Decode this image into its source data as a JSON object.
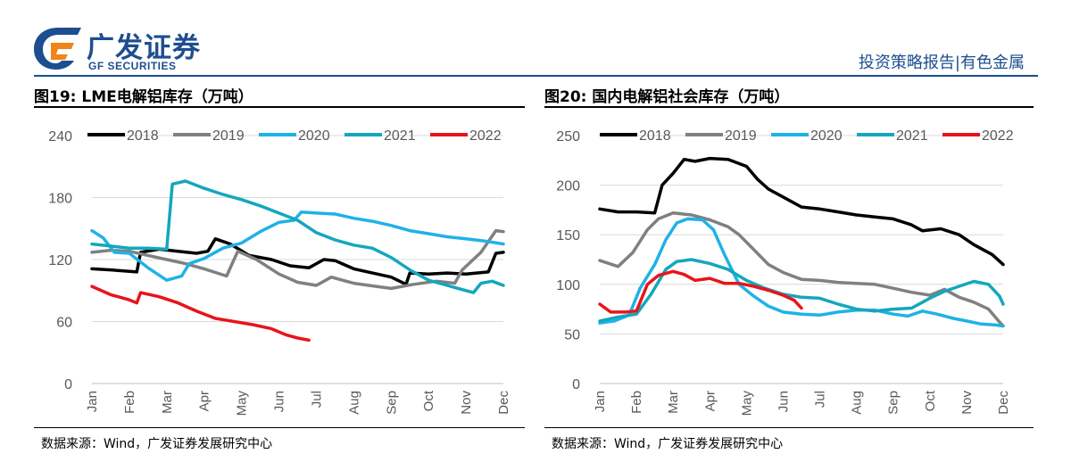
{
  "header": {
    "logo_cn": "广发证券",
    "logo_en": "GF SECURITIES",
    "report_type": "投资策略报告|有色金属"
  },
  "colors": {
    "brand_blue": "#1d4e8f",
    "brand_orange": "#f08519",
    "s2018": "#000000",
    "s2019": "#808080",
    "s2020": "#1fb2e6",
    "s2021": "#14a7bd",
    "s2022": "#e8141b"
  },
  "left_panel": {
    "title": "图19: LME电解铝库存（万吨）",
    "source": "数据来源：Wind，广发证券发展研究中心"
  },
  "right_panel": {
    "title": "图20: 国内电解铝社会库存（万吨）",
    "source": "数据来源：Wind，广发证券发展研究中心"
  },
  "chart_data": [
    {
      "type": "line",
      "title": "图19: LME电解铝库存（万吨）",
      "x": [
        "Jan",
        "Feb",
        "Mar",
        "Apr",
        "May",
        "Jun",
        "Jul",
        "Aug",
        "Sep",
        "Oct",
        "Nov",
        "Dec"
      ],
      "y_ticks": [
        0,
        60,
        120,
        180,
        240
      ],
      "ylim": [
        0,
        240
      ],
      "grid": true,
      "legend": "top",
      "series": [
        {
          "name": "2018",
          "color": "#000000",
          "points": [
            [
              0,
              111
            ],
            [
              0.5,
              110
            ],
            [
              1.2,
              108
            ],
            [
              1.3,
              127
            ],
            [
              1.8,
              130
            ],
            [
              2.3,
              128
            ],
            [
              2.8,
              126
            ],
            [
              3.1,
              128
            ],
            [
              3.3,
              140
            ],
            [
              3.7,
              135
            ],
            [
              4.2,
              124
            ],
            [
              4.8,
              120
            ],
            [
              5.3,
              114
            ],
            [
              5.8,
              112
            ],
            [
              6.2,
              120
            ],
            [
              6.5,
              119
            ],
            [
              7.0,
              111
            ],
            [
              7.5,
              107
            ],
            [
              8.0,
              103
            ],
            [
              8.4,
              96
            ],
            [
              8.5,
              107
            ],
            [
              9.0,
              106
            ],
            [
              9.5,
              107
            ],
            [
              10.0,
              106
            ],
            [
              10.6,
              108
            ],
            [
              10.8,
              126
            ],
            [
              11,
              127
            ]
          ]
        },
        {
          "name": "2019",
          "color": "#808080",
          "points": [
            [
              0,
              127
            ],
            [
              0.5,
              129
            ],
            [
              1.0,
              128
            ],
            [
              1.5,
              124
            ],
            [
              2.0,
              120
            ],
            [
              2.5,
              116
            ],
            [
              3.0,
              111
            ],
            [
              3.6,
              104
            ],
            [
              3.9,
              128
            ],
            [
              4.4,
              120
            ],
            [
              5.0,
              106
            ],
            [
              5.5,
              98
            ],
            [
              6.0,
              95
            ],
            [
              6.4,
              103
            ],
            [
              7.0,
              97
            ],
            [
              7.6,
              94
            ],
            [
              8.0,
              92
            ],
            [
              8.6,
              96
            ],
            [
              9.2,
              99
            ],
            [
              9.7,
              97
            ],
            [
              9.9,
              110
            ],
            [
              10.4,
              127
            ],
            [
              10.8,
              148
            ],
            [
              11,
              147
            ]
          ]
        },
        {
          "name": "2020",
          "color": "#1fb2e6",
          "points": [
            [
              0,
              148
            ],
            [
              0.3,
              141
            ],
            [
              0.6,
              127
            ],
            [
              1.0,
              126
            ],
            [
              1.5,
              112
            ],
            [
              2.0,
              100
            ],
            [
              2.4,
              104
            ],
            [
              2.6,
              116
            ],
            [
              3.0,
              121
            ],
            [
              3.5,
              131
            ],
            [
              4.0,
              136
            ],
            [
              4.5,
              147
            ],
            [
              5.0,
              156
            ],
            [
              5.4,
              158
            ],
            [
              5.6,
              166
            ],
            [
              6.0,
              165
            ],
            [
              6.5,
              164
            ],
            [
              7.0,
              160
            ],
            [
              7.5,
              157
            ],
            [
              8.0,
              153
            ],
            [
              8.5,
              148
            ],
            [
              9.0,
              145
            ],
            [
              9.5,
              142
            ],
            [
              10.0,
              140
            ],
            [
              10.5,
              138
            ],
            [
              11,
              135
            ]
          ]
        },
        {
          "name": "2021",
          "color": "#14a7bd",
          "points": [
            [
              0,
              135
            ],
            [
              0.5,
              133
            ],
            [
              1.0,
              131
            ],
            [
              1.5,
              131
            ],
            [
              2.0,
              130
            ],
            [
              2.15,
              193
            ],
            [
              2.5,
              196
            ],
            [
              3.0,
              189
            ],
            [
              3.5,
              183
            ],
            [
              4.0,
              178
            ],
            [
              4.5,
              172
            ],
            [
              5.0,
              165
            ],
            [
              5.5,
              158
            ],
            [
              6.0,
              146
            ],
            [
              6.5,
              139
            ],
            [
              7.0,
              134
            ],
            [
              7.5,
              131
            ],
            [
              8.0,
              122
            ],
            [
              8.5,
              110
            ],
            [
              9.0,
              100
            ],
            [
              9.5,
              95
            ],
            [
              10.0,
              90
            ],
            [
              10.2,
              88
            ],
            [
              10.4,
              97
            ],
            [
              10.7,
              99
            ],
            [
              11,
              95
            ]
          ]
        },
        {
          "name": "2022",
          "color": "#e8141b",
          "points": [
            [
              0,
              94
            ],
            [
              0.5,
              86
            ],
            [
              1.0,
              81
            ],
            [
              1.2,
              78
            ],
            [
              1.3,
              88
            ],
            [
              1.8,
              84
            ],
            [
              2.3,
              78
            ],
            [
              2.8,
              70
            ],
            [
              3.3,
              63
            ],
            [
              3.8,
              60
            ],
            [
              4.3,
              57
            ],
            [
              4.8,
              53
            ],
            [
              5.2,
              47
            ],
            [
              5.5,
              44
            ],
            [
              5.8,
              42
            ]
          ]
        }
      ]
    },
    {
      "type": "line",
      "title": "图20: 国内电解铝社会库存（万吨）",
      "x": [
        "Jan",
        "Feb",
        "Mar",
        "Apr",
        "May",
        "Jun",
        "Jul",
        "Aug",
        "Sep",
        "Oct",
        "Nov",
        "Dec"
      ],
      "y_ticks": [
        0,
        50,
        100,
        150,
        200,
        250
      ],
      "ylim": [
        0,
        250
      ],
      "grid": true,
      "legend": "top",
      "series": [
        {
          "name": "2018",
          "color": "#000000",
          "points": [
            [
              0,
              176
            ],
            [
              0.5,
              173
            ],
            [
              1.0,
              173
            ],
            [
              1.5,
              172
            ],
            [
              1.7,
              200
            ],
            [
              2.0,
              212
            ],
            [
              2.3,
              226
            ],
            [
              2.6,
              224
            ],
            [
              3.0,
              227
            ],
            [
              3.5,
              226
            ],
            [
              4.0,
              219
            ],
            [
              4.3,
              206
            ],
            [
              4.6,
              196
            ],
            [
              5.0,
              188
            ],
            [
              5.5,
              178
            ],
            [
              6.0,
              176
            ],
            [
              6.5,
              173
            ],
            [
              7.0,
              170
            ],
            [
              7.5,
              168
            ],
            [
              8.0,
              166
            ],
            [
              8.5,
              160
            ],
            [
              8.8,
              154
            ],
            [
              9.3,
              156
            ],
            [
              9.8,
              150
            ],
            [
              10.2,
              140
            ],
            [
              10.7,
              130
            ],
            [
              11,
              120
            ]
          ]
        },
        {
          "name": "2019",
          "color": "#808080",
          "points": [
            [
              0,
              124
            ],
            [
              0.5,
              118
            ],
            [
              0.9,
              132
            ],
            [
              1.3,
              155
            ],
            [
              1.6,
              166
            ],
            [
              2.0,
              172
            ],
            [
              2.5,
              170
            ],
            [
              3.0,
              165
            ],
            [
              3.5,
              158
            ],
            [
              3.8,
              150
            ],
            [
              4.2,
              135
            ],
            [
              4.6,
              120
            ],
            [
              5.0,
              112
            ],
            [
              5.5,
              105
            ],
            [
              6.0,
              104
            ],
            [
              6.5,
              102
            ],
            [
              7.0,
              101
            ],
            [
              7.5,
              100
            ],
            [
              8.0,
              96
            ],
            [
              8.5,
              92
            ],
            [
              9.0,
              89
            ],
            [
              9.4,
              95
            ],
            [
              9.8,
              87
            ],
            [
              10.2,
              82
            ],
            [
              10.6,
              75
            ],
            [
              10.9,
              62
            ],
            [
              11,
              58
            ]
          ]
        },
        {
          "name": "2020",
          "color": "#1fb2e6",
          "points": [
            [
              0,
              61
            ],
            [
              0.4,
              63
            ],
            [
              0.8,
              69
            ],
            [
              1.1,
              96
            ],
            [
              1.5,
              120
            ],
            [
              1.8,
              145
            ],
            [
              2.1,
              162
            ],
            [
              2.4,
              166
            ],
            [
              2.8,
              165
            ],
            [
              3.1,
              155
            ],
            [
              3.4,
              130
            ],
            [
              3.8,
              100
            ],
            [
              4.2,
              88
            ],
            [
              4.6,
              78
            ],
            [
              5.0,
              72
            ],
            [
              5.5,
              70
            ],
            [
              6.0,
              69
            ],
            [
              6.5,
              72
            ],
            [
              7.0,
              74
            ],
            [
              7.5,
              74
            ],
            [
              8.0,
              70
            ],
            [
              8.4,
              68
            ],
            [
              8.8,
              73
            ],
            [
              9.2,
              70
            ],
            [
              9.6,
              66
            ],
            [
              10.0,
              63
            ],
            [
              10.4,
              60
            ],
            [
              10.8,
              59
            ],
            [
              11,
              58
            ]
          ]
        },
        {
          "name": "2021",
          "color": "#14a7bd",
          "points": [
            [
              0,
              63
            ],
            [
              0.5,
              67
            ],
            [
              1.0,
              70
            ],
            [
              1.4,
              90
            ],
            [
              1.8,
              115
            ],
            [
              2.1,
              123
            ],
            [
              2.5,
              125
            ],
            [
              3.0,
              121
            ],
            [
              3.5,
              115
            ],
            [
              4.0,
              104
            ],
            [
              4.5,
              96
            ],
            [
              5.0,
              90
            ],
            [
              5.5,
              87
            ],
            [
              6.0,
              86
            ],
            [
              6.5,
              80
            ],
            [
              7.0,
              75
            ],
            [
              7.5,
              73
            ],
            [
              8.0,
              75
            ],
            [
              8.5,
              76
            ],
            [
              9.0,
              86
            ],
            [
              9.4,
              93
            ],
            [
              9.8,
              98
            ],
            [
              10.2,
              103
            ],
            [
              10.6,
              100
            ],
            [
              10.9,
              88
            ],
            [
              11,
              80
            ]
          ]
        },
        {
          "name": "2022",
          "color": "#e8141b",
          "points": [
            [
              0,
              80
            ],
            [
              0.3,
              72
            ],
            [
              0.7,
              72
            ],
            [
              1.0,
              73
            ],
            [
              1.3,
              100
            ],
            [
              1.6,
              109
            ],
            [
              2.0,
              113
            ],
            [
              2.3,
              110
            ],
            [
              2.6,
              104
            ],
            [
              3.0,
              106
            ],
            [
              3.4,
              101
            ],
            [
              3.8,
              101
            ],
            [
              4.2,
              98
            ],
            [
              4.6,
              94
            ],
            [
              5.0,
              89
            ],
            [
              5.3,
              84
            ],
            [
              5.5,
              76
            ]
          ]
        }
      ]
    }
  ]
}
